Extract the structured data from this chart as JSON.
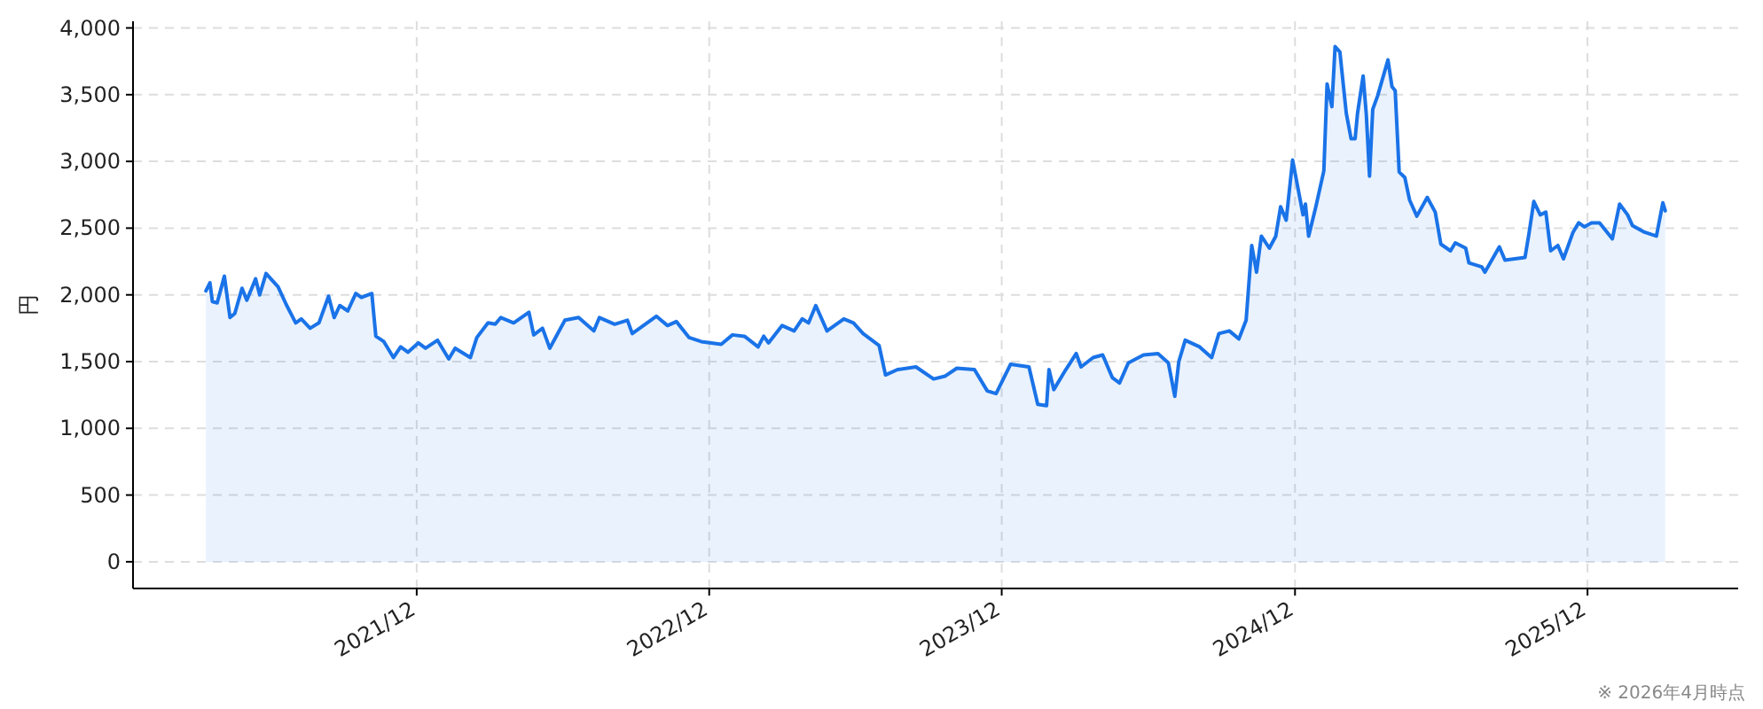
{
  "chart_data": {
    "type": "area",
    "ylabel": "円",
    "annotations": [
      "※ 2026年4月時点"
    ],
    "grid": true,
    "line_style": "solid",
    "marker": "none",
    "xlim": [
      "2020-12-12",
      "2026-06-07"
    ],
    "xticks": [
      {
        "value": "2021-12-01",
        "label": "2021/12"
      },
      {
        "value": "2022-12-01",
        "label": "2022/12"
      },
      {
        "value": "2023-12-01",
        "label": "2023/12"
      },
      {
        "value": "2024-12-01",
        "label": "2024/12"
      },
      {
        "value": "2025-12-01",
        "label": "2025/12"
      }
    ],
    "ylim": [
      -200,
      4050
    ],
    "yticks": [
      0,
      500,
      {
        "value": 1000,
        "label": "1,000"
      },
      {
        "value": 1500,
        "label": "1,500"
      },
      {
        "value": 2000,
        "label": "2,000"
      },
      {
        "value": 2500,
        "label": "2,500"
      },
      {
        "value": 3000,
        "label": "3,000"
      },
      {
        "value": 3500,
        "label": "3,500"
      },
      {
        "value": 4000,
        "label": "4,000"
      }
    ],
    "series": [
      {
        "color": "#1a73e8",
        "x": [
          "2021-03-13",
          "2021-03-18",
          "2021-03-21",
          "2021-03-27",
          "2021-04-05",
          "2021-04-12",
          "2021-04-18",
          "2021-04-27",
          "2021-05-03",
          "2021-05-14",
          "2021-05-19",
          "2021-05-27",
          "2021-06-11",
          "2021-06-21",
          "2021-07-03",
          "2021-07-10",
          "2021-07-21",
          "2021-08-01",
          "2021-08-13",
          "2021-08-20",
          "2021-08-27",
          "2021-09-06",
          "2021-09-16",
          "2021-09-23",
          "2021-10-06",
          "2021-10-11",
          "2021-10-21",
          "2021-11-02",
          "2021-11-11",
          "2021-11-20",
          "2021-12-03",
          "2021-12-12",
          "2021-12-27",
          "2022-01-10",
          "2022-01-18",
          "2022-02-06",
          "2022-02-14",
          "2022-02-28",
          "2022-03-09",
          "2022-03-16",
          "2022-04-01",
          "2022-04-20",
          "2022-04-26",
          "2022-05-07",
          "2022-05-16",
          "2022-06-04",
          "2022-06-21",
          "2022-07-10",
          "2022-07-17",
          "2022-08-05",
          "2022-08-21",
          "2022-08-27",
          "2022-09-26",
          "2022-10-10",
          "2022-10-21",
          "2022-11-06",
          "2022-11-21",
          "2022-12-16",
          "2022-12-30",
          "2023-01-14",
          "2023-01-31",
          "2023-02-07",
          "2023-02-13",
          "2023-03-02",
          "2023-03-17",
          "2023-03-27",
          "2023-04-04",
          "2023-04-13",
          "2023-04-27",
          "2023-05-18",
          "2023-05-30",
          "2023-06-11",
          "2023-07-01",
          "2023-07-09",
          "2023-07-24",
          "2023-08-16",
          "2023-09-07",
          "2023-09-21",
          "2023-10-06",
          "2023-10-28",
          "2023-11-13",
          "2023-11-24",
          "2023-12-12",
          "2024-01-04",
          "2024-01-15",
          "2024-01-26",
          "2024-01-29",
          "2024-02-04",
          "2024-02-19",
          "2024-03-03",
          "2024-03-09",
          "2024-03-24",
          "2024-04-05",
          "2024-04-17",
          "2024-04-26",
          "2024-05-07",
          "2024-05-26",
          "2024-06-13",
          "2024-06-26",
          "2024-07-04",
          "2024-07-09",
          "2024-07-17",
          "2024-08-04",
          "2024-08-19",
          "2024-08-28",
          "2024-09-10",
          "2024-09-22",
          "2024-10-01",
          "2024-10-08",
          "2024-10-14",
          "2024-10-20",
          "2024-10-30",
          "2024-11-07",
          "2024-11-13",
          "2024-11-20",
          "2024-11-28",
          "2024-12-11",
          "2024-12-14",
          "2024-12-18",
          "2024-12-27",
          "2025-01-06",
          "2025-01-10",
          "2025-01-16",
          "2025-01-20",
          "2025-01-26",
          "2025-02-03",
          "2025-02-09",
          "2025-02-14",
          "2025-02-17",
          "2025-02-24",
          "2025-02-28",
          "2025-03-04",
          "2025-03-08",
          "2025-03-14",
          "2025-03-27",
          "2025-04-01",
          "2025-04-05",
          "2025-04-10",
          "2025-04-17",
          "2025-04-23",
          "2025-05-02",
          "2025-05-15",
          "2025-05-25",
          "2025-06-01",
          "2025-06-13",
          "2025-06-19",
          "2025-07-02",
          "2025-07-06",
          "2025-07-22",
          "2025-07-26",
          "2025-08-13",
          "2025-08-20",
          "2025-09-14",
          "2025-09-19",
          "2025-09-25",
          "2025-10-03",
          "2025-10-10",
          "2025-10-16",
          "2025-10-25",
          "2025-11-01",
          "2025-11-13",
          "2025-11-20",
          "2025-11-27",
          "2025-12-06",
          "2025-12-16",
          "2026-01-01",
          "2026-01-10",
          "2026-01-20",
          "2026-01-26",
          "2026-02-10",
          "2026-02-25",
          "2026-03-05",
          "2026-03-08"
        ],
        "values": [
          2030,
          2090,
          1950,
          1940,
          2140,
          1830,
          1860,
          2050,
          1960,
          2120,
          2000,
          2160,
          2060,
          1930,
          1790,
          1820,
          1750,
          1790,
          1990,
          1830,
          1920,
          1880,
          2010,
          1980,
          2010,
          1690,
          1650,
          1530,
          1610,
          1570,
          1640,
          1600,
          1660,
          1520,
          1600,
          1530,
          1680,
          1790,
          1780,
          1830,
          1790,
          1870,
          1700,
          1750,
          1600,
          1810,
          1830,
          1730,
          1830,
          1780,
          1810,
          1710,
          1840,
          1770,
          1800,
          1680,
          1650,
          1630,
          1700,
          1690,
          1610,
          1690,
          1640,
          1770,
          1730,
          1820,
          1790,
          1920,
          1730,
          1820,
          1790,
          1710,
          1620,
          1400,
          1440,
          1460,
          1370,
          1390,
          1450,
          1440,
          1280,
          1260,
          1480,
          1460,
          1180,
          1170,
          1440,
          1290,
          1440,
          1560,
          1460,
          1530,
          1550,
          1380,
          1340,
          1490,
          1550,
          1560,
          1490,
          1240,
          1500,
          1660,
          1610,
          1530,
          1710,
          1730,
          1670,
          1810,
          2370,
          2170,
          2440,
          2350,
          2440,
          2660,
          2560,
          3010,
          2600,
          2680,
          2440,
          2660,
          2930,
          3580,
          3410,
          3860,
          3820,
          3360,
          3170,
          3170,
          3360,
          3640,
          3350,
          2890,
          3390,
          3490,
          3760,
          3560,
          3530,
          2920,
          2880,
          2710,
          2590,
          2730,
          2620,
          2380,
          2330,
          2390,
          2350,
          2240,
          2210,
          2170,
          2360,
          2260,
          2280,
          2460,
          2700,
          2600,
          2620,
          2330,
          2370,
          2270,
          2470,
          2540,
          2510,
          2540,
          2540,
          2420,
          2680,
          2600,
          2520,
          2470,
          2440,
          2690,
          2630
        ]
      }
    ]
  }
}
